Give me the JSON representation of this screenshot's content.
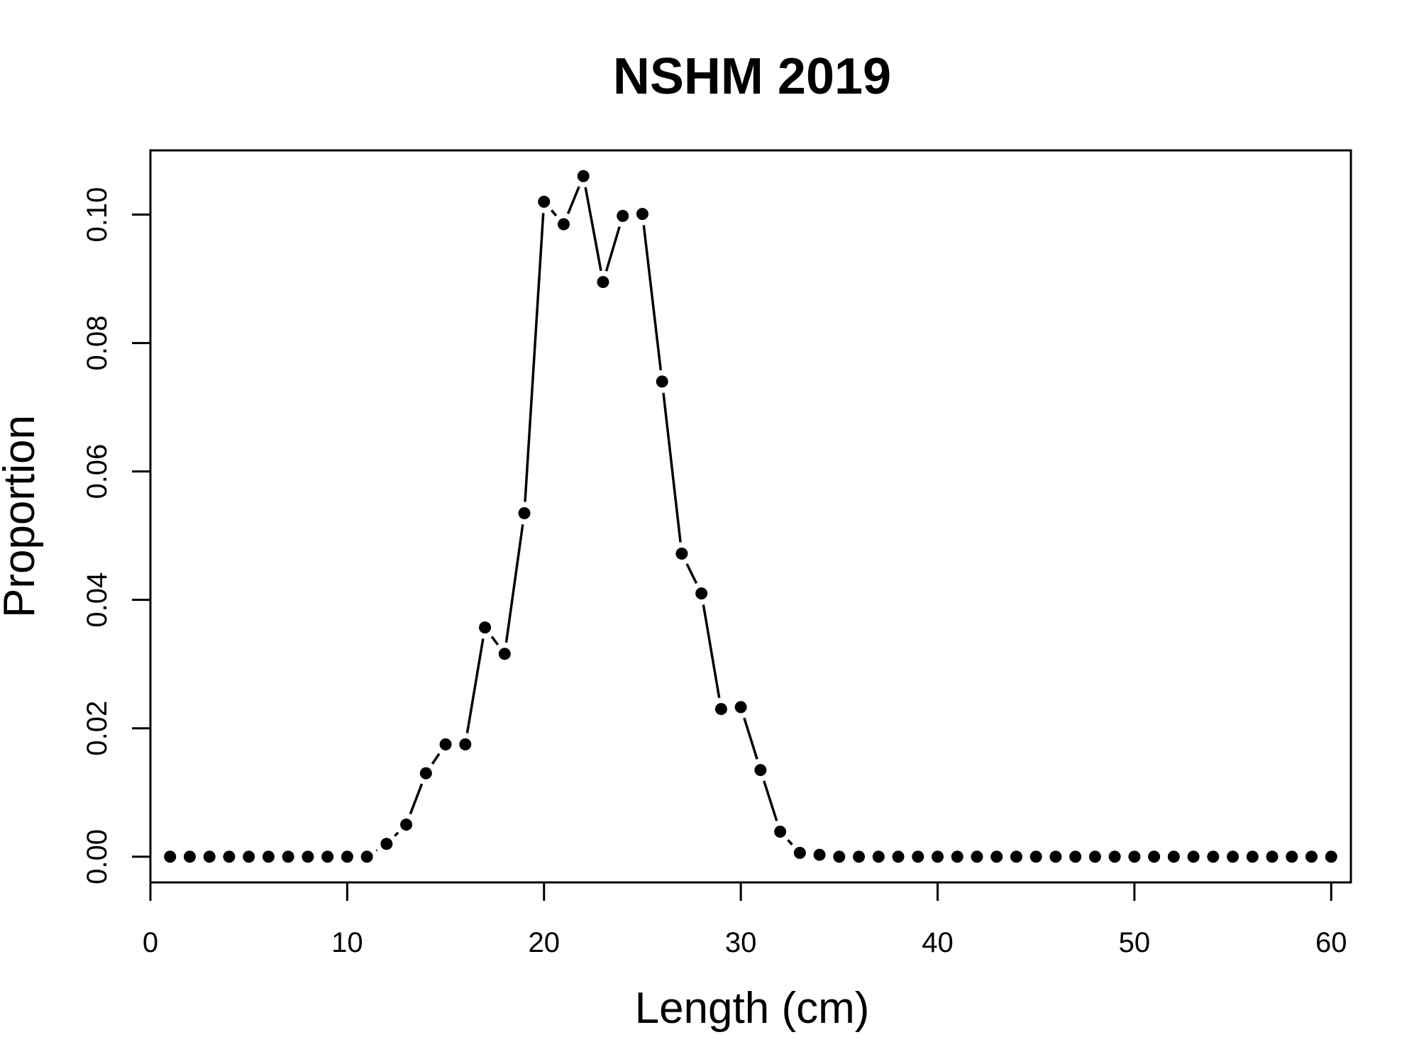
{
  "chart_data": {
    "type": "line",
    "title": "NSHM 2019",
    "xlabel": "Length (cm)",
    "ylabel": "Proportion",
    "xlim": [
      0,
      61
    ],
    "ylim": [
      -0.004,
      0.11
    ],
    "xticks": [
      0,
      10,
      20,
      30,
      40,
      50,
      60
    ],
    "xtick_labels": [
      "0",
      "10",
      "20",
      "30",
      "40",
      "50",
      "60"
    ],
    "yticks": [
      0,
      0.02,
      0.04,
      0.06,
      0.08,
      0.1
    ],
    "ytick_labels": [
      "0.00",
      "0.02",
      "0.04",
      "0.06",
      "0.08",
      "0.10"
    ],
    "grid": false,
    "series": [
      {
        "style": "points-and-line",
        "color": "#000000",
        "x": [
          1,
          2,
          3,
          4,
          5,
          6,
          7,
          8,
          9,
          10,
          11,
          12,
          13,
          14,
          15,
          16,
          17,
          18,
          19,
          20,
          21,
          22,
          23,
          24,
          25,
          26,
          27,
          28,
          29,
          30,
          31,
          32,
          33,
          34,
          35,
          36,
          37,
          38,
          39,
          40,
          41,
          42,
          43,
          44,
          45,
          46,
          47,
          48,
          49,
          50,
          51,
          52,
          53,
          54,
          55,
          56,
          57,
          58,
          59,
          60
        ],
        "y": [
          0,
          0,
          0,
          0,
          0,
          0,
          0,
          0,
          0,
          0,
          0,
          0.002,
          0.005,
          0.013,
          0.0175,
          0.0175,
          0.0357,
          0.0316,
          0.0535,
          0.102,
          0.0985,
          0.106,
          0.0895,
          0.0998,
          0.1001,
          0.074,
          0.0472,
          0.041,
          0.023,
          0.0233,
          0.0135,
          0.0039,
          0.0006,
          0.0003,
          0,
          0,
          0,
          0,
          0,
          0,
          0,
          0,
          0,
          0,
          0,
          0,
          0,
          0,
          0,
          0,
          0,
          0,
          0,
          0,
          0,
          0,
          0,
          0,
          0,
          0
        ]
      }
    ]
  }
}
